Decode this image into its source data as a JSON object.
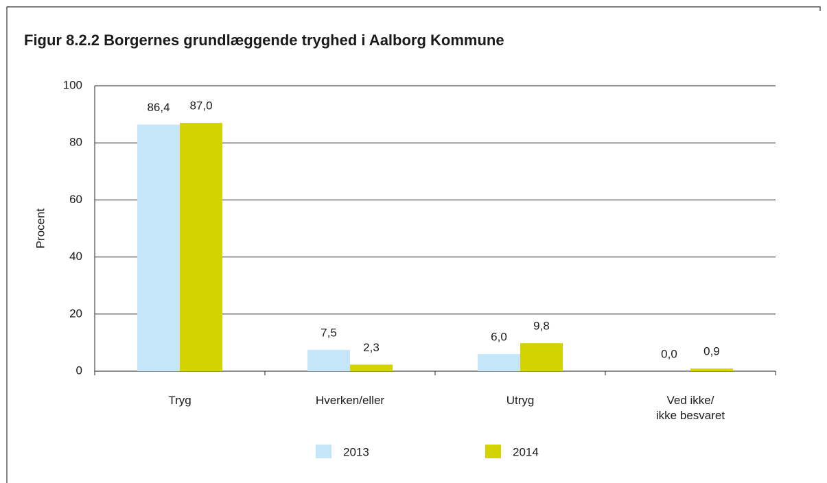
{
  "chart_data": {
    "type": "bar",
    "title": "Figur 8.2.2  Borgernes grundlæggende tryghed i Aalborg Kommune",
    "ylabel": "Procent",
    "categories": [
      "Tryg",
      "Hverken/eller",
      "Utryg",
      "Ved ikke/\nikke besvaret"
    ],
    "series": [
      {
        "name": "2013",
        "color": "#c5e6f8",
        "values": [
          86.4,
          7.5,
          6.0,
          0.0
        ],
        "value_labels": [
          "86,4",
          "7,5",
          "6,0",
          "0,0"
        ]
      },
      {
        "name": "2014",
        "color": "#d2d300",
        "values": [
          87.0,
          2.3,
          9.8,
          0.9
        ],
        "value_labels": [
          "87,0",
          "2,3",
          "9,8",
          "0,9"
        ]
      }
    ],
    "ylim": [
      0,
      100
    ],
    "yticks": [
      0,
      20,
      40,
      60,
      80,
      100
    ],
    "grid": true
  }
}
